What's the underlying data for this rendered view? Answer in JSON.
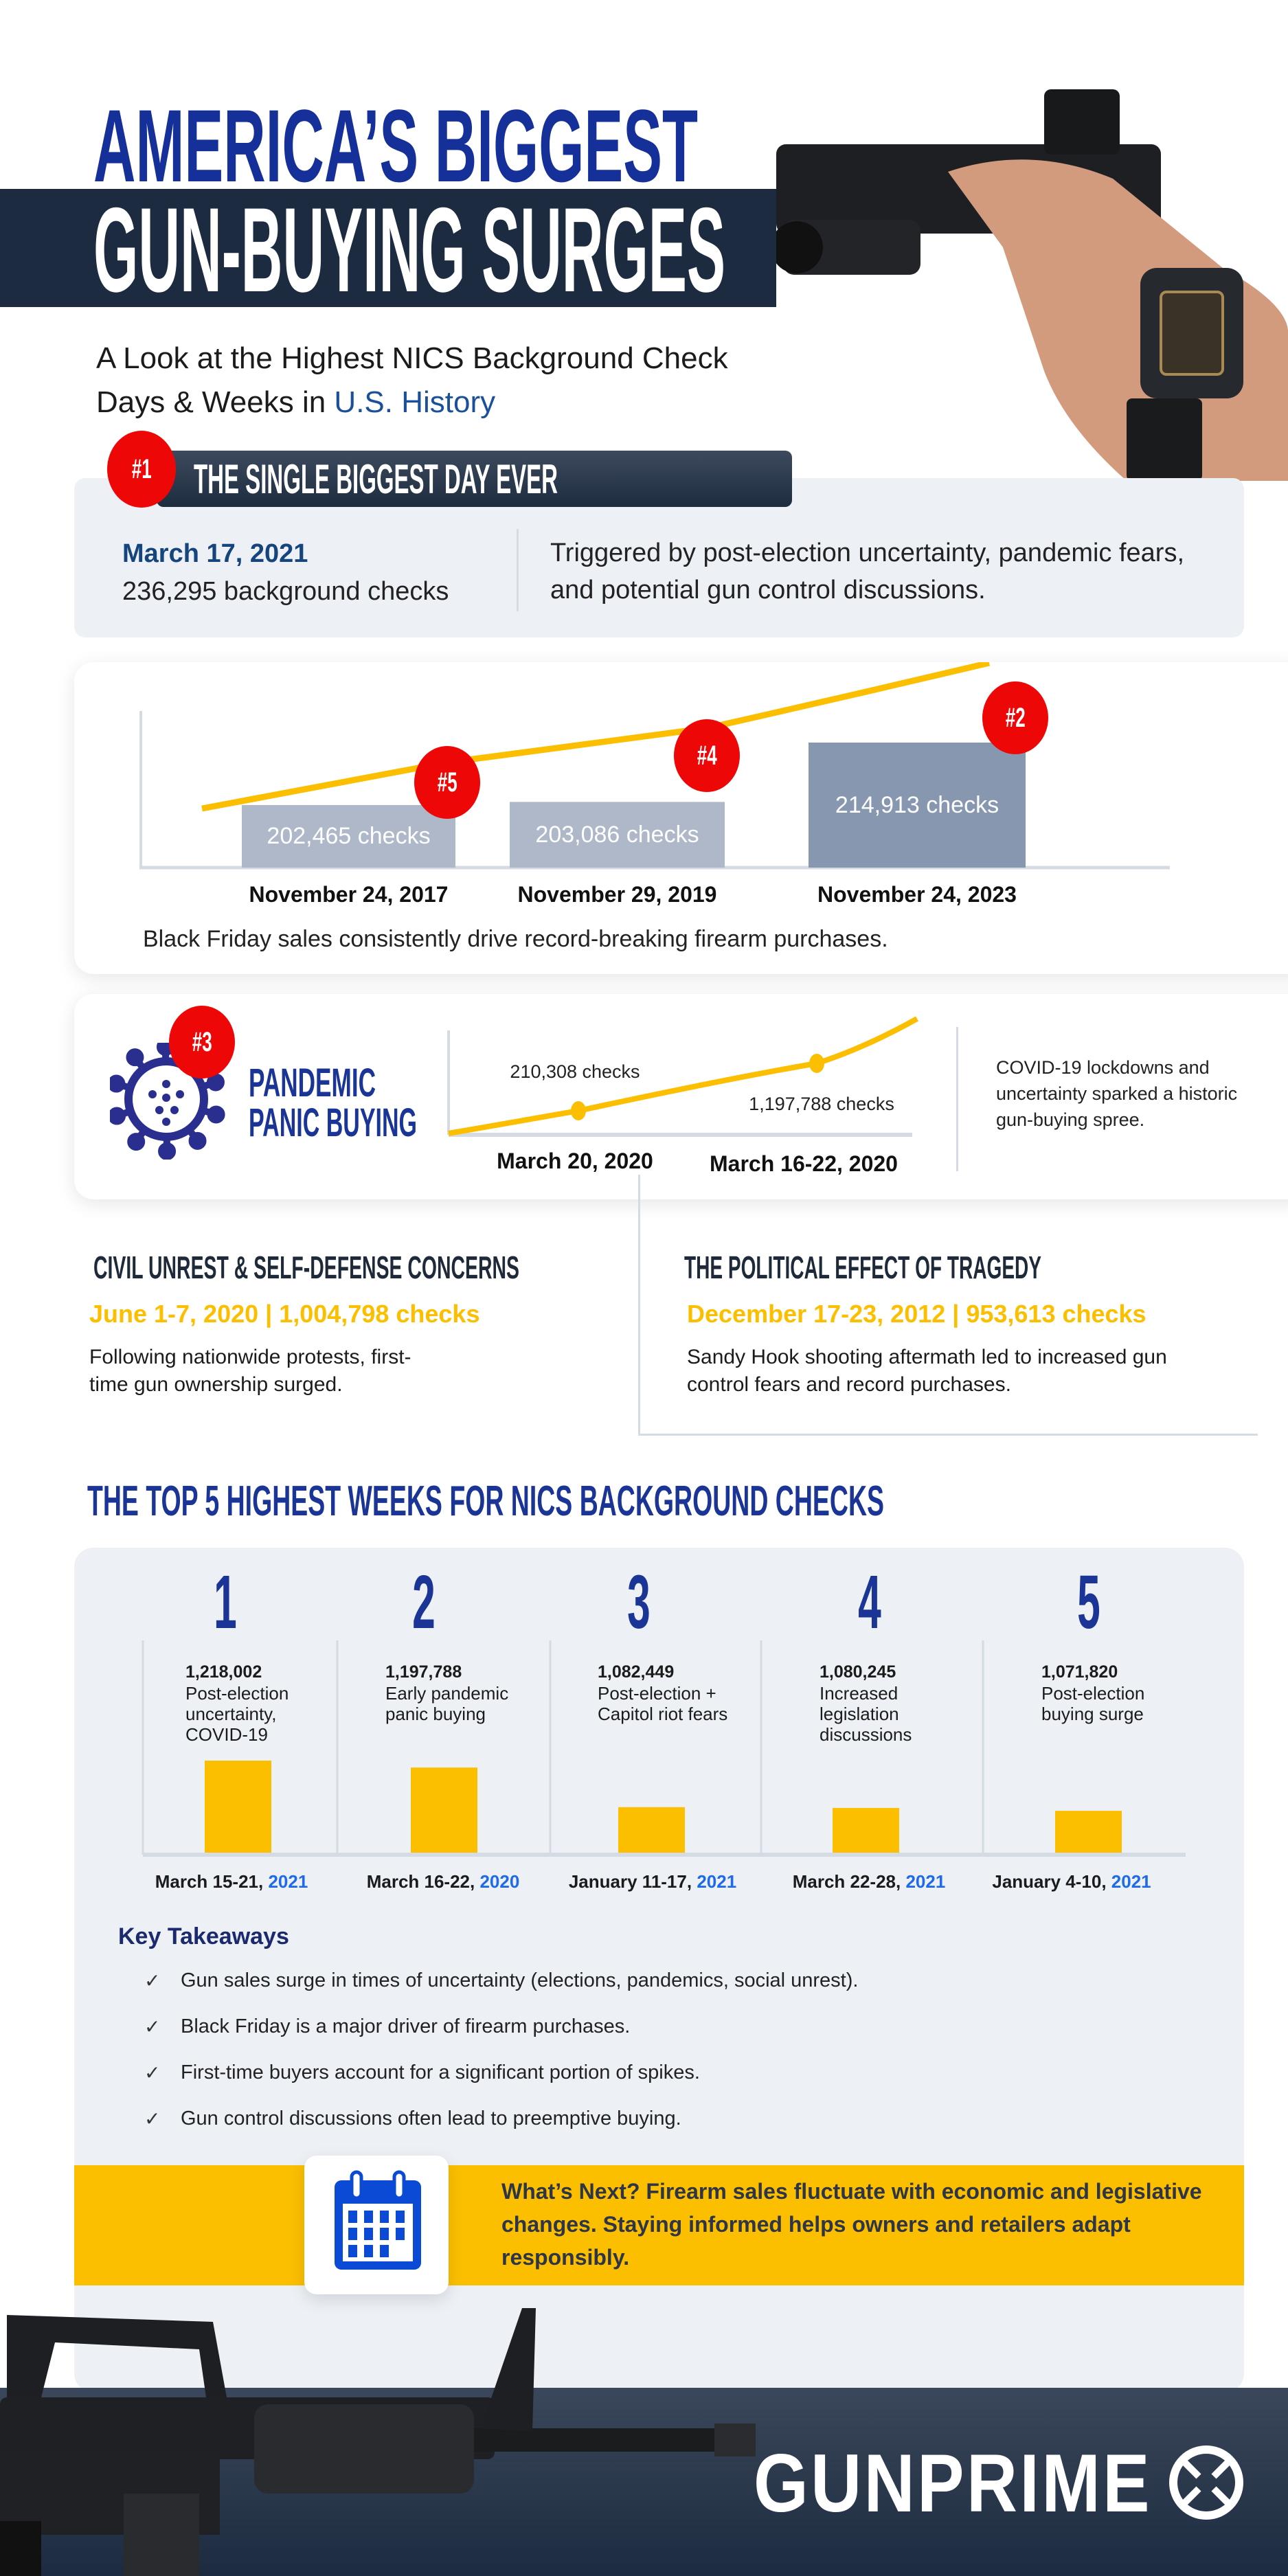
{
  "header": {
    "title_line1": "AMERICA’S BIGGEST",
    "title_line2": "GUN-BUYING SURGES",
    "subtitle_line1": "A Look at the Highest NICS Background Check",
    "subtitle_line2_prefix": "Days & Weeks in ",
    "subtitle_line2_highlight": "U.S. History"
  },
  "biggest_day": {
    "badge": "#1",
    "heading": "THE SINGLE BIGGEST DAY EVER",
    "date": "March 17, 2021",
    "checks": "236,295 background checks",
    "description": "Triggered by post-election uncertainty, pandemic fears, and potential gun control discussions."
  },
  "black_friday": {
    "bars": [
      {
        "date": "November 24, 2017",
        "label": "202,465  checks",
        "value": 202465,
        "badge": "#5"
      },
      {
        "date": "November 29, 2019",
        "label": "203,086 checks",
        "value": 203086,
        "badge": "#4"
      },
      {
        "date": "November 24, 2023",
        "label": "214,913 checks",
        "value": 214913,
        "badge": "#2"
      }
    ],
    "caption": "Black Friday sales consistently drive record-breaking firearm purchases."
  },
  "pandemic": {
    "badge": "#3",
    "title_line1": "PANDEMIC",
    "title_line2": "PANIC BUYING",
    "points": [
      {
        "date": "March 20, 2020",
        "label": "210,308 checks"
      },
      {
        "date": "March 16-22, 2020",
        "label": "1,197,788 checks"
      }
    ],
    "description": "COVID-19 lockdowns and uncertainty sparked a historic gun-buying spree."
  },
  "civil_unrest": {
    "heading": "CIVIL UNREST & SELF-DEFENSE CONCERNS",
    "stat": "June 1-7, 2020 | 1,004,798 checks",
    "description_line1": "Following nationwide protests, first-",
    "description_line2": "time gun ownership surged."
  },
  "tragedy": {
    "heading": "THE POLITICAL EFFECT OF TRAGEDY",
    "stat": "December 17-23, 2012 | 953,613 checks",
    "description_line1": "Sandy Hook shooting aftermath led to increased gun",
    "description_line2": "control fears and record purchases."
  },
  "top5": {
    "heading": "THE TOP 5 HIGHEST WEEKS FOR NICS BACKGROUND CHECKS",
    "weeks": [
      {
        "rank": "1",
        "value": "1,218,002",
        "checks": 1218002,
        "desc": "Post-election uncertainty, COVID-19",
        "dates": "March 15-21, ",
        "year": "2021"
      },
      {
        "rank": "2",
        "value": "1,197,788",
        "checks": 1197788,
        "desc": "Early pandemic panic buying",
        "dates": "March 16-22, ",
        "year": "2020"
      },
      {
        "rank": "3",
        "value": "1,082,449",
        "checks": 1082449,
        "desc": "Post-election + Capitol riot fears",
        "dates": "January 11-17, ",
        "year": "2021"
      },
      {
        "rank": "4",
        "value": "1,080,245",
        "checks": 1080245,
        "desc": "Increased legislation discussions",
        "dates": "March 22-28, ",
        "year": "2021"
      },
      {
        "rank": "5",
        "value": "1,071,820",
        "checks": 1071820,
        "desc": "Post-election buying surge",
        "dates": "January 4-10, ",
        "year": "2021"
      }
    ]
  },
  "takeaways": {
    "heading": "Key Takeaways",
    "items": [
      "Gun sales surge in times of uncertainty (elections, pandemics, social unrest).",
      "Black Friday is a major driver of firearm purchases.",
      "First-time buyers account for a significant portion of spikes.",
      "Gun control discussions often lead to preemptive buying."
    ],
    "check_icon": "✓"
  },
  "whats_next": {
    "icon": "calendar-icon",
    "text": "What’s Next? Firearm sales fluctuate with economic and legislative changes. Staying informed helps owners and retailers adapt responsibly."
  },
  "footer": {
    "logo": "GUNPRIME"
  },
  "colors": {
    "navy": "#1a3596",
    "dark_band": "#1c2b40",
    "red": "#ee0707",
    "yellow": "#fbbf00",
    "light_panel": "#edf1f6",
    "blue_accent": "#1e6ae8"
  }
}
